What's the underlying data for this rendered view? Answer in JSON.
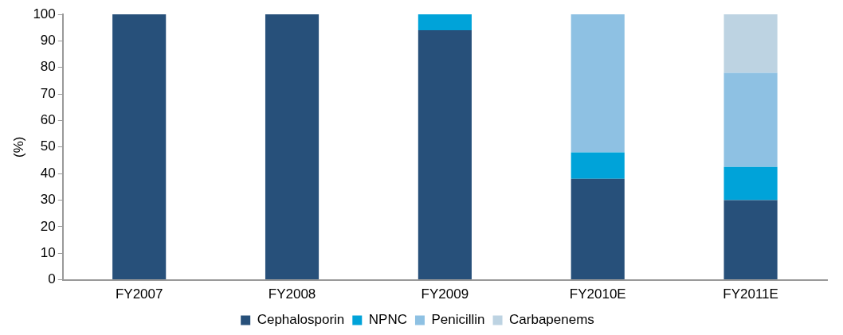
{
  "chart_data": {
    "type": "bar",
    "stacked": true,
    "ylabel": "(%)",
    "categories": [
      "FY2007",
      "FY2008",
      "FY2009",
      "FY2010E",
      "FY2011E"
    ],
    "series": [
      {
        "name": "Cephalosporin",
        "color": "#27507a",
        "values": [
          100,
          100,
          94,
          38,
          30
        ]
      },
      {
        "name": "NPNC",
        "color": "#00a3d9",
        "values": [
          0,
          0,
          6,
          10,
          12.5
        ]
      },
      {
        "name": "Penicillin",
        "color": "#8ec1e3",
        "values": [
          0,
          0,
          0,
          52,
          35.5
        ]
      },
      {
        "name": "Carbapenems",
        "color": "#bdd3e2",
        "values": [
          0,
          0,
          0,
          0,
          22
        ]
      }
    ],
    "ylim": [
      0,
      100
    ],
    "yticks": [
      0,
      10,
      20,
      30,
      40,
      50,
      60,
      70,
      80,
      90,
      100
    ],
    "grid": false,
    "legend": "bottom"
  }
}
